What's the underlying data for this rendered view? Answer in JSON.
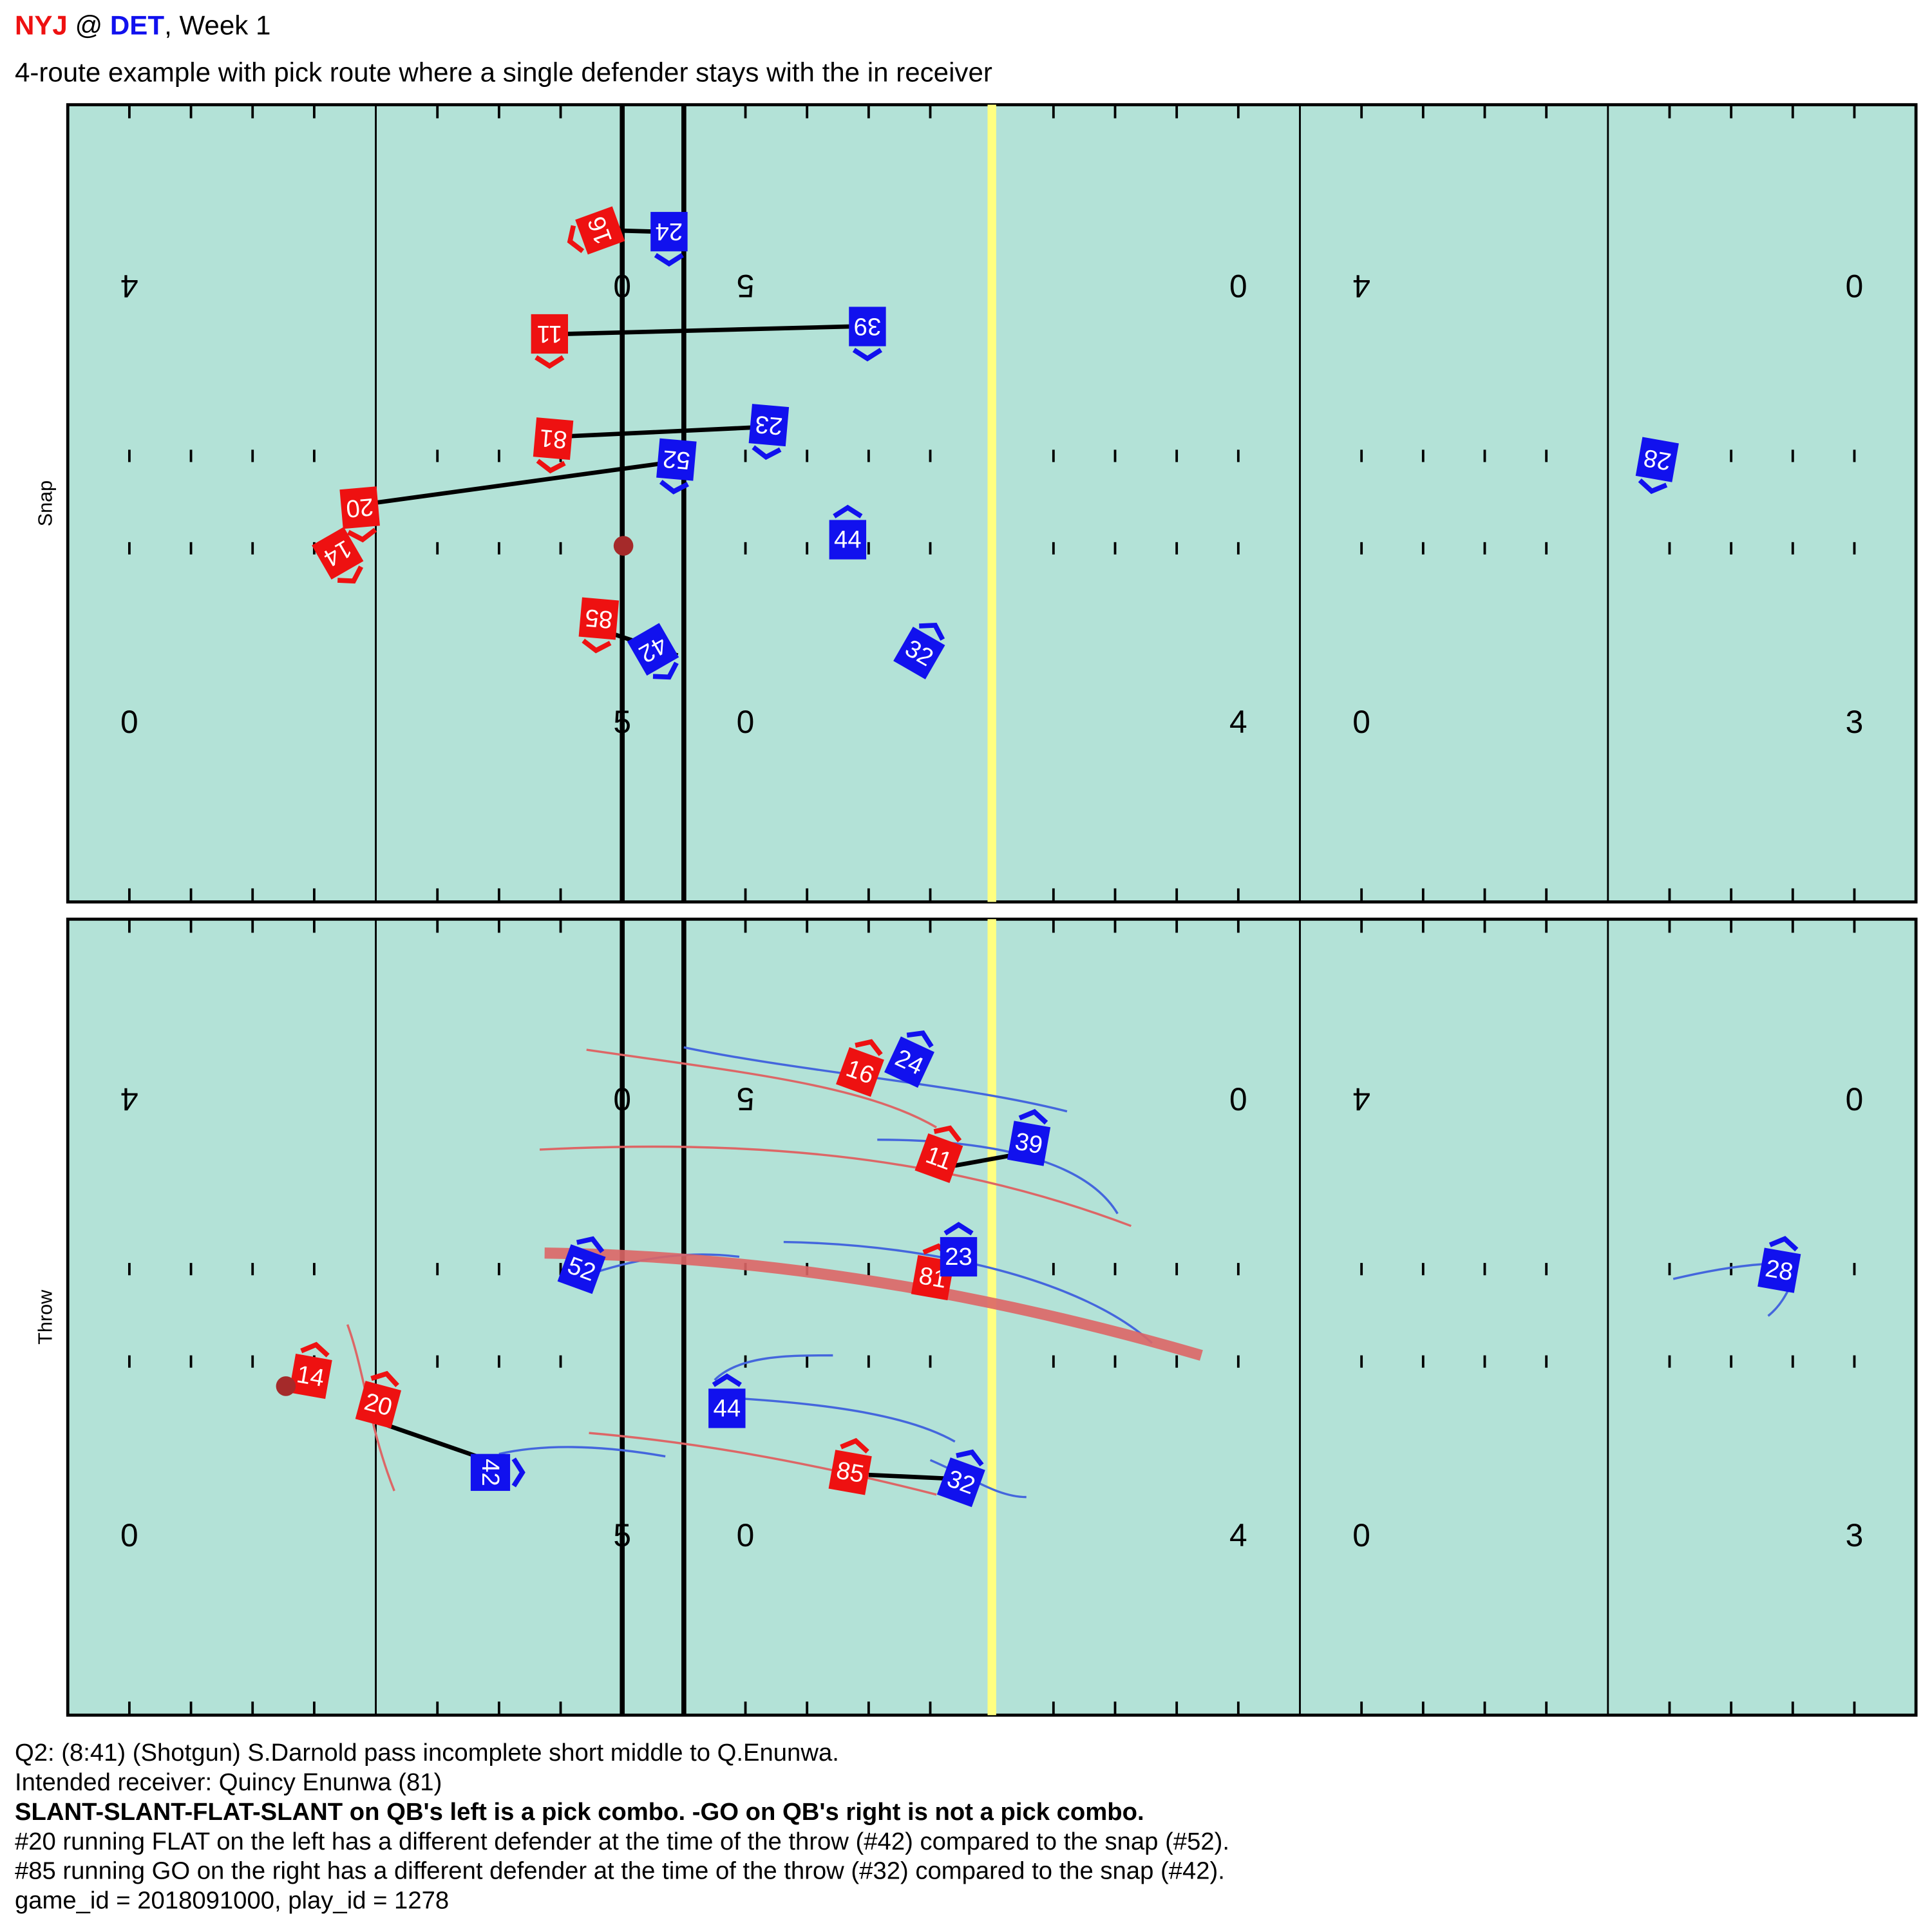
{
  "header": {
    "home": "NYJ",
    "at": " @ ",
    "away": "DET",
    "week": ", Week 1",
    "subtitle": "4-route example with pick route where a single defender stays with the in receiver"
  },
  "field": {
    "top_numbers": [
      "4",
      "0",
      "5",
      "0",
      "4",
      "0"
    ],
    "bottom_numbers": [
      "0",
      "5",
      "0",
      "4",
      "0",
      "3"
    ]
  },
  "panels": [
    {
      "label": "Snap",
      "offense": [
        "16",
        "11",
        "81",
        "20",
        "14",
        "85"
      ],
      "defense": [
        "24",
        "39",
        "23",
        "52",
        "44",
        "42",
        "32",
        "28"
      ]
    },
    {
      "label": "Throw",
      "offense": [
        "16",
        "11",
        "81",
        "20",
        "14",
        "85"
      ],
      "defense": [
        "24",
        "39",
        "23",
        "52",
        "44",
        "42",
        "32",
        "28"
      ]
    }
  ],
  "caption": [
    "Q2: (8:41) (Shotgun) S.Darnold pass incomplete short middle to Q.Enunwa.",
    "Intended receiver: Quincy Enunwa (81)",
    "SLANT-SLANT-FLAT-SLANT on QB's left is a pick combo. -GO on QB's right is not a pick combo.",
    "#20 running FLAT on the left has a different defender at the time of the throw (#42) compared to the snap (#52).",
    "#85 running GO on the right has a different defender at the time of the throw (#32) compared to the snap (#42).",
    "game_id = 2018091000, play_id = 1278"
  ]
}
